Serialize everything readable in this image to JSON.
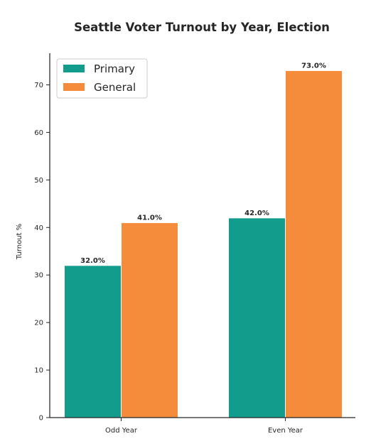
{
  "chart_data": {
    "type": "bar",
    "title": "Seattle Voter Turnout by Year, Election",
    "xlabel": "",
    "ylabel": "Turnout %",
    "categories": [
      "Odd Year",
      "Even Year"
    ],
    "series": [
      {
        "name": "Primary",
        "values": [
          32.0,
          42.0
        ],
        "color": "#129c8c"
      },
      {
        "name": "General",
        "values": [
          41.0,
          73.0
        ],
        "color": "#f58c3c"
      }
    ],
    "data_labels": [
      [
        "32.0%",
        "42.0%"
      ],
      [
        "41.0%",
        "73.0%"
      ]
    ],
    "ylim": [
      0,
      76.65
    ],
    "yticks": [
      0,
      10,
      20,
      30,
      40,
      50,
      60,
      70
    ],
    "grid": false,
    "legend": "top-left"
  }
}
